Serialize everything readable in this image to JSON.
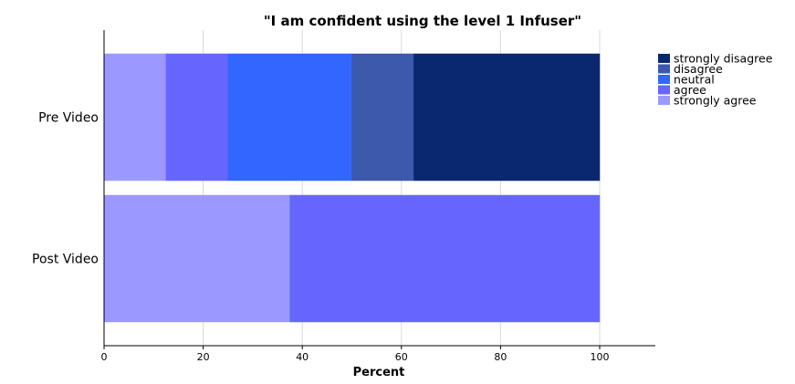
{
  "chart_data": {
    "type": "bar",
    "orientation": "horizontal",
    "stacked": true,
    "title": "\"I am confident using the level 1 Infuser\"",
    "xlabel": "Percent",
    "ylabel": "",
    "xlim": [
      0,
      100
    ],
    "xticks": [
      "0",
      "20",
      "40",
      "60",
      "80",
      "100"
    ],
    "grid": true,
    "legend_position": "right",
    "categories": [
      "Pre Video",
      "Post Video"
    ],
    "series": [
      {
        "name": "strongly agree",
        "color": "#9b99ff",
        "values": [
          12.5,
          37.5
        ]
      },
      {
        "name": "agree",
        "color": "#6666ff",
        "values": [
          12.5,
          62.5
        ]
      },
      {
        "name": "neutral",
        "color": "#3366ff",
        "values": [
          25,
          0
        ]
      },
      {
        "name": "disagree",
        "color": "#3d59ab",
        "values": [
          12.5,
          0
        ]
      },
      {
        "name": "strongly disagree",
        "color": "#0a2870",
        "values": [
          37.5,
          0
        ]
      }
    ],
    "legend_order": [
      "strongly disagree",
      "disagree",
      "neutral",
      "agree",
      "strongly agree"
    ]
  }
}
